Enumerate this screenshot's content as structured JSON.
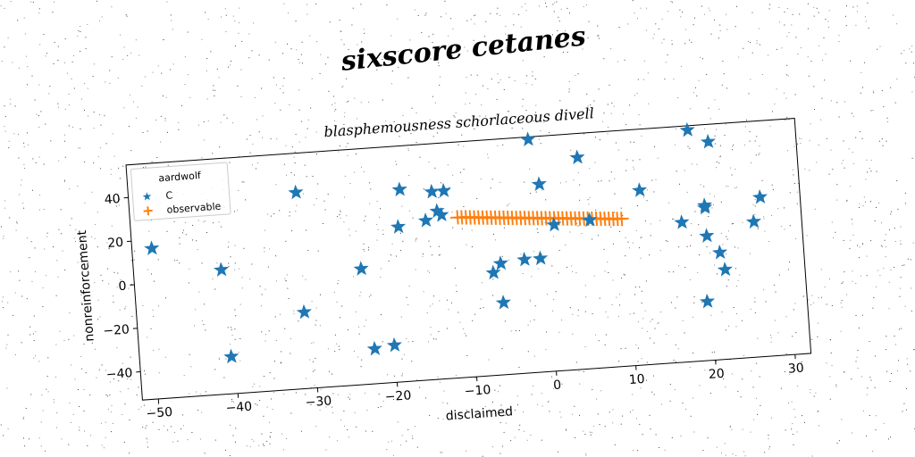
{
  "suptitle": "sixscore cetanes",
  "chart_data": {
    "type": "scatter",
    "title": "blasphemousness schorlaceous divell",
    "xlabel": "disclaimed",
    "ylabel": "nonreinforcement",
    "xlim": [
      -52,
      32
    ],
    "ylim": [
      -53,
      55
    ],
    "xticks": [
      -50,
      -40,
      -30,
      -20,
      -10,
      0,
      10,
      20,
      30
    ],
    "yticks": [
      -40,
      -20,
      0,
      20,
      40
    ],
    "grid": false,
    "legend": {
      "title": "aardwolf",
      "placement": "top-left"
    },
    "colors": {
      "C": "#1f77b4",
      "observable": "#ff7f0e"
    },
    "series": [
      {
        "name": "C",
        "marker": "star",
        "points": [
          [
            -49.5,
            16
          ],
          [
            -41,
            4
          ],
          [
            -40.5,
            -36
          ],
          [
            -31,
            37
          ],
          [
            -31,
            -18
          ],
          [
            -23.5,
            0
          ],
          [
            -22.5,
            -37
          ],
          [
            -20,
            -36
          ],
          [
            -18.5,
            18
          ],
          [
            -18,
            35
          ],
          [
            -15,
            20
          ],
          [
            -14,
            33
          ],
          [
            -13.5,
            24
          ],
          [
            -13,
            22
          ],
          [
            -12.5,
            33
          ],
          [
            -1.5,
            60
          ],
          [
            -0.5,
            33
          ],
          [
            1,
            14
          ],
          [
            4.5,
            44
          ],
          [
            5.5,
            15
          ],
          [
            -7,
            -6
          ],
          [
            -6,
            -2
          ],
          [
            -6,
            -20
          ],
          [
            -3,
            -1
          ],
          [
            -1,
            -1
          ],
          [
            12,
            27
          ],
          [
            17,
            11
          ],
          [
            18.5,
            53
          ],
          [
            19.5,
            -26
          ],
          [
            20,
            18
          ],
          [
            20,
            17
          ],
          [
            20,
            4
          ],
          [
            21,
            47
          ],
          [
            21.5,
            -4
          ],
          [
            22,
            -12
          ],
          [
            26,
            9
          ],
          [
            27,
            20
          ]
        ]
      },
      {
        "name": "observable",
        "marker": "plus",
        "line": {
          "x_start": -11,
          "y_start": 20.5,
          "x_end": 9.5,
          "y_end": 14.5,
          "count": 40
        }
      }
    ]
  }
}
